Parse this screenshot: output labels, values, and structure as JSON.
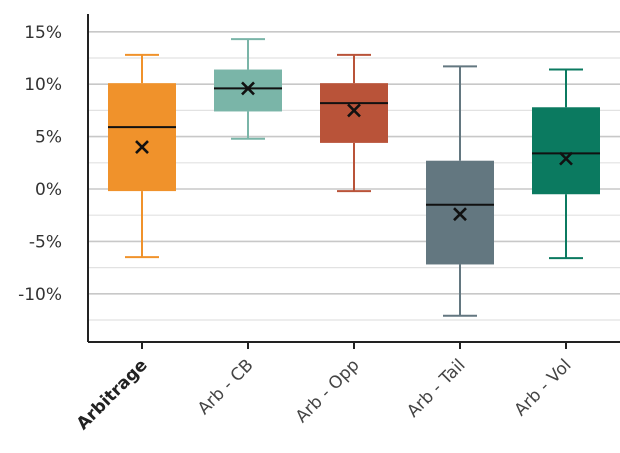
{
  "chart_data": {
    "type": "box",
    "y_tick_labels": [
      "15%",
      "10%",
      "5%",
      "0%",
      "-5%",
      "-10%"
    ],
    "y_ticks": [
      15,
      10,
      5,
      0,
      -5,
      -10
    ],
    "ylim": [
      -14.6,
      16.7
    ],
    "minor_grid_step": 2.5,
    "grid": true,
    "categories": [
      "Arbitrage",
      "Arb - CB",
      "Arb - Opp",
      "Arb - Tail",
      "Arb - Vol"
    ],
    "boxes": [
      {
        "category": "Arbitrage",
        "whisker_low": -6.5,
        "q1": -0.2,
        "median": 5.9,
        "q3": 10.1,
        "whisker_high": 12.8,
        "mean": 4.0,
        "color": "#F0922B",
        "bold_label": true
      },
      {
        "category": "Arb - CB",
        "whisker_low": 4.8,
        "q1": 7.4,
        "median": 9.6,
        "q3": 11.4,
        "whisker_high": 14.3,
        "mean": 9.6,
        "color": "#7AB5A8",
        "bold_label": false
      },
      {
        "category": "Arb - Opp",
        "whisker_low": -0.2,
        "q1": 4.4,
        "median": 8.2,
        "q3": 10.1,
        "whisker_high": 12.8,
        "mean": 7.5,
        "color": "#B95339",
        "bold_label": false
      },
      {
        "category": "Arb - Tail",
        "whisker_low": -12.1,
        "q1": -7.2,
        "median": -1.5,
        "q3": 2.7,
        "whisker_high": 11.7,
        "mean": -2.4,
        "color": "#637780",
        "bold_label": false
      },
      {
        "category": "Arb - Vol",
        "whisker_low": -6.6,
        "q1": -0.5,
        "median": 3.4,
        "q3": 7.8,
        "whisker_high": 11.4,
        "mean": 2.9,
        "color": "#0B7A60",
        "bold_label": false
      }
    ]
  }
}
